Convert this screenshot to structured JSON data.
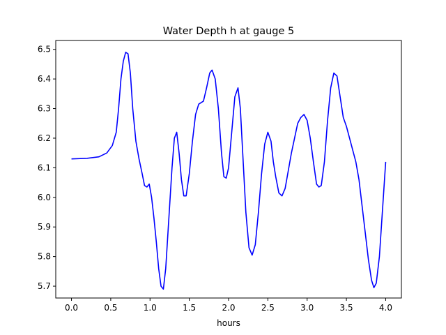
{
  "chart_data": {
    "type": "line",
    "title": "Water Depth h at gauge 5",
    "xlabel": "hours",
    "ylabel": "",
    "xlim": [
      -0.2,
      4.2
    ],
    "ylim": [
      5.66,
      6.53
    ],
    "x_ticks": [
      0.0,
      0.5,
      1.0,
      1.5,
      2.0,
      2.5,
      3.0,
      3.5,
      4.0
    ],
    "x_tick_labels": [
      "0.0",
      "0.5",
      "1.0",
      "1.5",
      "2.0",
      "2.5",
      "3.0",
      "3.5",
      "4.0"
    ],
    "y_ticks": [
      5.7,
      5.8,
      5.9,
      6.0,
      6.1,
      6.2,
      6.3,
      6.4,
      6.5
    ],
    "y_tick_labels": [
      "5.7",
      "5.8",
      "5.9",
      "6.0",
      "6.1",
      "6.2",
      "6.3",
      "6.4",
      "6.5"
    ],
    "grid": false,
    "line_color": "#0000ff",
    "series": [
      {
        "color": "#0000ff",
        "points": [
          [
            0.0,
            6.13
          ],
          [
            0.2,
            6.132
          ],
          [
            0.35,
            6.137
          ],
          [
            0.45,
            6.15
          ],
          [
            0.52,
            6.175
          ],
          [
            0.57,
            6.22
          ],
          [
            0.6,
            6.3
          ],
          [
            0.63,
            6.4
          ],
          [
            0.66,
            6.46
          ],
          [
            0.69,
            6.49
          ],
          [
            0.72,
            6.485
          ],
          [
            0.75,
            6.42
          ],
          [
            0.78,
            6.3
          ],
          [
            0.82,
            6.19
          ],
          [
            0.86,
            6.13
          ],
          [
            0.9,
            6.08
          ],
          [
            0.93,
            6.04
          ],
          [
            0.96,
            6.035
          ],
          [
            0.99,
            6.045
          ],
          [
            1.02,
            6.0
          ],
          [
            1.05,
            5.93
          ],
          [
            1.08,
            5.85
          ],
          [
            1.11,
            5.76
          ],
          [
            1.14,
            5.7
          ],
          [
            1.17,
            5.69
          ],
          [
            1.2,
            5.76
          ],
          [
            1.24,
            5.93
          ],
          [
            1.28,
            6.1
          ],
          [
            1.31,
            6.2
          ],
          [
            1.34,
            6.22
          ],
          [
            1.37,
            6.15
          ],
          [
            1.4,
            6.06
          ],
          [
            1.43,
            6.005
          ],
          [
            1.46,
            6.005
          ],
          [
            1.5,
            6.08
          ],
          [
            1.54,
            6.19
          ],
          [
            1.58,
            6.28
          ],
          [
            1.62,
            6.315
          ],
          [
            1.65,
            6.32
          ],
          [
            1.68,
            6.325
          ],
          [
            1.72,
            6.37
          ],
          [
            1.76,
            6.42
          ],
          [
            1.79,
            6.43
          ],
          [
            1.83,
            6.4
          ],
          [
            1.87,
            6.3
          ],
          [
            1.91,
            6.15
          ],
          [
            1.94,
            6.07
          ],
          [
            1.97,
            6.065
          ],
          [
            2.0,
            6.1
          ],
          [
            2.04,
            6.22
          ],
          [
            2.08,
            6.34
          ],
          [
            2.12,
            6.37
          ],
          [
            2.15,
            6.3
          ],
          [
            2.18,
            6.15
          ],
          [
            2.22,
            5.95
          ],
          [
            2.26,
            5.83
          ],
          [
            2.3,
            5.805
          ],
          [
            2.34,
            5.84
          ],
          [
            2.38,
            5.95
          ],
          [
            2.42,
            6.08
          ],
          [
            2.46,
            6.18
          ],
          [
            2.5,
            6.22
          ],
          [
            2.54,
            6.19
          ],
          [
            2.57,
            6.12
          ],
          [
            2.6,
            6.07
          ],
          [
            2.64,
            6.015
          ],
          [
            2.68,
            6.005
          ],
          [
            2.72,
            6.03
          ],
          [
            2.76,
            6.09
          ],
          [
            2.8,
            6.15
          ],
          [
            2.84,
            6.2
          ],
          [
            2.88,
            6.25
          ],
          [
            2.92,
            6.27
          ],
          [
            2.96,
            6.28
          ],
          [
            3.0,
            6.26
          ],
          [
            3.04,
            6.2
          ],
          [
            3.08,
            6.12
          ],
          [
            3.12,
            6.045
          ],
          [
            3.15,
            6.035
          ],
          [
            3.18,
            6.04
          ],
          [
            3.22,
            6.12
          ],
          [
            3.26,
            6.26
          ],
          [
            3.3,
            6.37
          ],
          [
            3.34,
            6.42
          ],
          [
            3.38,
            6.41
          ],
          [
            3.42,
            6.34
          ],
          [
            3.46,
            6.27
          ],
          [
            3.5,
            6.24
          ],
          [
            3.54,
            6.2
          ],
          [
            3.58,
            6.16
          ],
          [
            3.62,
            6.12
          ],
          [
            3.66,
            6.06
          ],
          [
            3.7,
            5.97
          ],
          [
            3.74,
            5.88
          ],
          [
            3.78,
            5.79
          ],
          [
            3.82,
            5.72
          ],
          [
            3.85,
            5.695
          ],
          [
            3.88,
            5.71
          ],
          [
            3.92,
            5.8
          ],
          [
            3.96,
            5.96
          ],
          [
            4.0,
            6.12
          ]
        ]
      }
    ]
  }
}
